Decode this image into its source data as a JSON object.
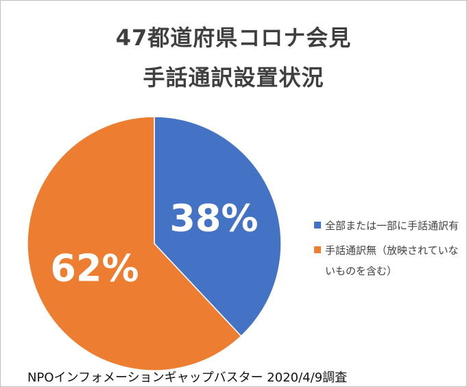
{
  "chart_data": {
    "type": "pie",
    "title_lines": [
      "47都道府県コロナ会見",
      "手話通訳設置状況"
    ],
    "slices": [
      {
        "label": "全部または一部に手話通訳有",
        "value": 38,
        "display": "38%",
        "color": "#4472c4"
      },
      {
        "label": "手話通訳無（放映されていないものを含む）",
        "value": 62,
        "display": "62%",
        "color": "#ed7d31"
      }
    ],
    "legend_position": "right"
  },
  "footer": "NPOインフォメーションギャップバスター 2020/4/9調査"
}
